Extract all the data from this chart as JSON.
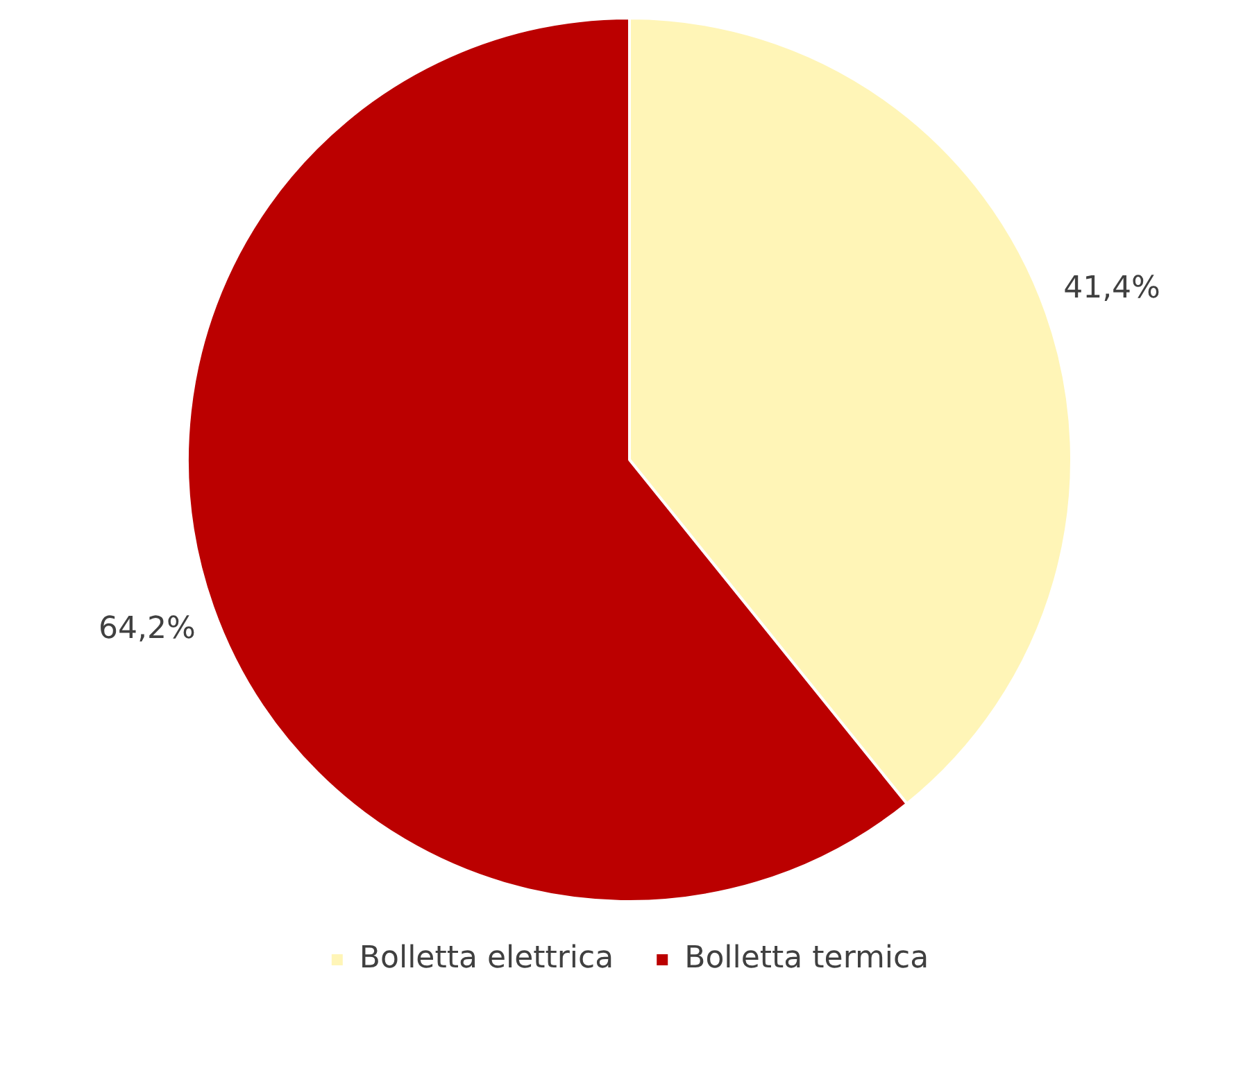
{
  "chart_data": {
    "type": "pie",
    "categories": [
      "Bolletta elettrica",
      "Bolletta termica"
    ],
    "values": [
      41.4,
      64.2
    ],
    "colors": [
      "#fff5b7",
      "#bb0000"
    ],
    "value_labels": [
      "41,4%",
      "64,2%"
    ],
    "legend": "bottom"
  }
}
